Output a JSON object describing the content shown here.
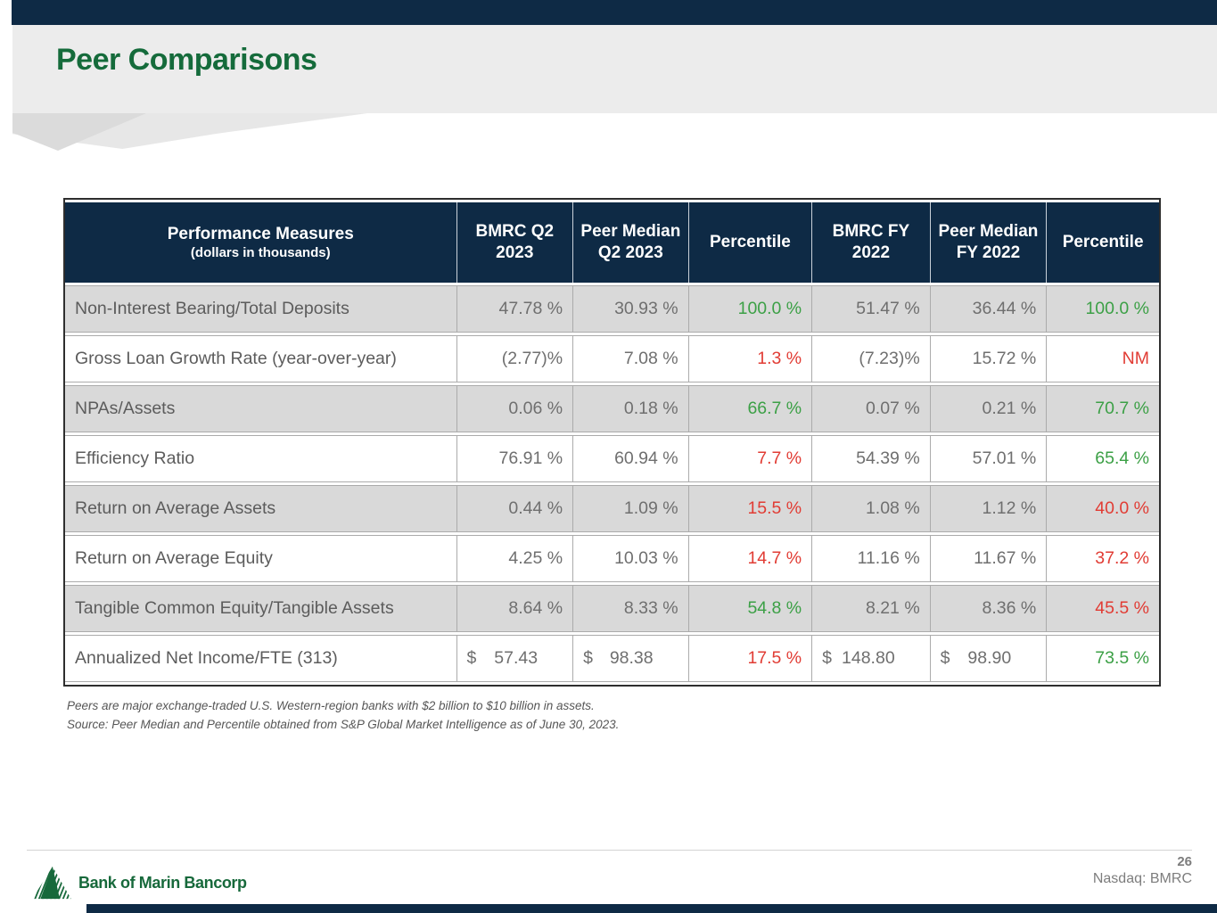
{
  "title": "Peer Comparisons",
  "table": {
    "header": {
      "col1_line1": "Performance Measures",
      "col1_line2": "(dollars in thousands)",
      "cols": [
        "BMRC Q2 2023",
        "Peer Median Q2 2023",
        "Percentile",
        "BMRC FY 2022",
        "Peer Median FY 2022",
        "Percentile"
      ]
    },
    "rows": [
      {
        "label": "Non-Interest Bearing/Total Deposits",
        "cells": [
          {
            "t": "47.78 %",
            "tone": "gray"
          },
          {
            "t": "30.93 %",
            "tone": "gray"
          },
          {
            "t": "100.0 %",
            "tone": "green"
          },
          {
            "t": "51.47 %",
            "tone": "gray"
          },
          {
            "t": "36.44 %",
            "tone": "gray"
          },
          {
            "t": "100.0 %",
            "tone": "green"
          }
        ]
      },
      {
        "label": "Gross Loan Growth Rate (year-over-year)",
        "cells": [
          {
            "t": "(2.77)%",
            "tone": "gray"
          },
          {
            "t": "7.08 %",
            "tone": "gray"
          },
          {
            "t": "1.3 %",
            "tone": "red"
          },
          {
            "t": "(7.23)%",
            "tone": "gray"
          },
          {
            "t": "15.72 %",
            "tone": "gray"
          },
          {
            "t": "NM",
            "tone": "red"
          }
        ]
      },
      {
        "label": "NPAs/Assets",
        "cells": [
          {
            "t": "0.06 %",
            "tone": "gray"
          },
          {
            "t": "0.18 %",
            "tone": "gray"
          },
          {
            "t": "66.7 %",
            "tone": "green"
          },
          {
            "t": "0.07 %",
            "tone": "gray"
          },
          {
            "t": "0.21 %",
            "tone": "gray"
          },
          {
            "t": "70.7 %",
            "tone": "green"
          }
        ]
      },
      {
        "label": "Efficiency Ratio",
        "cells": [
          {
            "t": "76.91 %",
            "tone": "gray"
          },
          {
            "t": "60.94 %",
            "tone": "gray"
          },
          {
            "t": "7.7 %",
            "tone": "red"
          },
          {
            "t": "54.39 %",
            "tone": "gray"
          },
          {
            "t": "57.01 %",
            "tone": "gray"
          },
          {
            "t": "65.4 %",
            "tone": "green"
          }
        ]
      },
      {
        "label": "Return on Average Assets",
        "cells": [
          {
            "t": "0.44 %",
            "tone": "gray"
          },
          {
            "t": "1.09 %",
            "tone": "gray"
          },
          {
            "t": "15.5 %",
            "tone": "red"
          },
          {
            "t": "1.08 %",
            "tone": "gray"
          },
          {
            "t": "1.12 %",
            "tone": "gray"
          },
          {
            "t": "40.0 %",
            "tone": "red"
          }
        ]
      },
      {
        "label": "Return on Average Equity",
        "cells": [
          {
            "t": "4.25 %",
            "tone": "gray"
          },
          {
            "t": "10.03 %",
            "tone": "gray"
          },
          {
            "t": "14.7 %",
            "tone": "red"
          },
          {
            "t": "11.16 %",
            "tone": "gray"
          },
          {
            "t": "11.67 %",
            "tone": "gray"
          },
          {
            "t": "37.2 %",
            "tone": "red"
          }
        ]
      },
      {
        "label": "Tangible Common Equity/Tangible Assets",
        "cells": [
          {
            "t": "8.64 %",
            "tone": "gray"
          },
          {
            "t": "8.33 %",
            "tone": "gray"
          },
          {
            "t": "54.8 %",
            "tone": "green"
          },
          {
            "t": "8.21 %",
            "tone": "gray"
          },
          {
            "t": "8.36 %",
            "tone": "gray"
          },
          {
            "t": "45.5 %",
            "tone": "red"
          }
        ]
      },
      {
        "label": "Annualized Net Income/FTE (313)",
        "cells": [
          {
            "prefix": "$",
            "t": "57.43",
            "tone": "gray"
          },
          {
            "prefix": "$",
            "t": "98.38",
            "tone": "gray"
          },
          {
            "t": "17.5 %",
            "tone": "red"
          },
          {
            "prefix": "$",
            "t": "148.80",
            "tone": "gray"
          },
          {
            "prefix": "$",
            "t": "98.90",
            "tone": "gray"
          },
          {
            "t": "73.5 %",
            "tone": "green"
          }
        ]
      }
    ]
  },
  "footnotes": [
    "Peers are major exchange-traded U.S. Western-region banks with $2 billion to $10 billion in assets.",
    "Source: Peer Median and Percentile obtained from S&P Global Market Intelligence as of June 30, 2023."
  ],
  "footer": {
    "page_number": "26",
    "ticker_label": "Nasdaq: BMRC",
    "logo_text": "Bank of Marin Bancorp"
  },
  "colors": {
    "navy": "#0E2A45",
    "positive_green": "#3CA046",
    "negative_red": "#E13C34",
    "brand_green": "#17693B",
    "row_gray": "#D9D9D9",
    "band_gray": "#ECECEC"
  }
}
